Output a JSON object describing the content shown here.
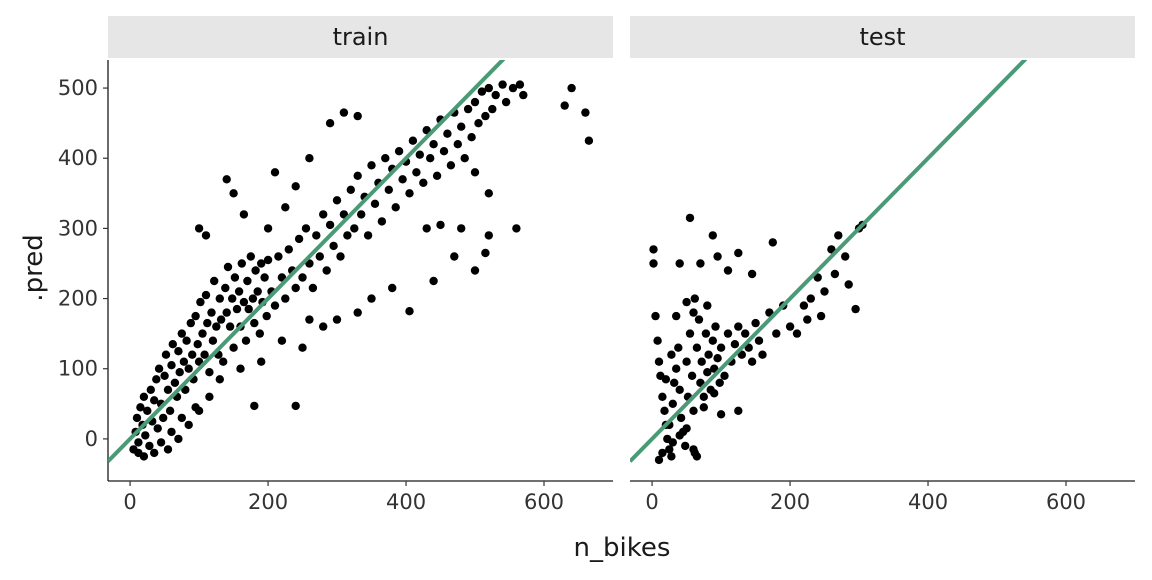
{
  "chart_data": {
    "type": "scatter",
    "xlabel": "n_bikes",
    "ylabel": ".pred",
    "xlim": [
      -32,
      700
    ],
    "ylim": [
      -60,
      540
    ],
    "x_ticks": [
      0,
      200,
      400,
      600
    ],
    "x_tick_labels": [
      "0",
      "200",
      "400",
      "600"
    ],
    "y_ticks": [
      0,
      100,
      200,
      300,
      400,
      500
    ],
    "y_tick_labels": [
      "0",
      "100",
      "200",
      "300",
      "400",
      "500"
    ],
    "grid": false,
    "colors": {
      "points": "#000000",
      "reference_line": "#4a9a77",
      "strip": "#e6e6e6"
    },
    "reference_line": {
      "slope": 1,
      "intercept": 0
    },
    "panels": [
      {
        "label": "train",
        "points": [
          [
            5,
            -15
          ],
          [
            8,
            10
          ],
          [
            10,
            30
          ],
          [
            12,
            -5
          ],
          [
            15,
            45
          ],
          [
            18,
            20
          ],
          [
            20,
            60
          ],
          [
            22,
            5
          ],
          [
            25,
            40
          ],
          [
            28,
            -10
          ],
          [
            30,
            70
          ],
          [
            32,
            25
          ],
          [
            35,
            55
          ],
          [
            38,
            85
          ],
          [
            40,
            15
          ],
          [
            42,
            100
          ],
          [
            45,
            50
          ],
          [
            48,
            30
          ],
          [
            50,
            90
          ],
          [
            52,
            120
          ],
          [
            55,
            70
          ],
          [
            58,
            40
          ],
          [
            60,
            105
          ],
          [
            62,
            135
          ],
          [
            65,
            80
          ],
          [
            68,
            60
          ],
          [
            70,
            125
          ],
          [
            72,
            95
          ],
          [
            75,
            150
          ],
          [
            78,
            110
          ],
          [
            80,
            70
          ],
          [
            82,
            140
          ],
          [
            85,
            100
          ],
          [
            88,
            165
          ],
          [
            90,
            120
          ],
          [
            92,
            85
          ],
          [
            95,
            175
          ],
          [
            98,
            135
          ],
          [
            100,
            110
          ],
          [
            102,
            195
          ],
          [
            105,
            150
          ],
          [
            108,
            120
          ],
          [
            110,
            205
          ],
          [
            112,
            165
          ],
          [
            115,
            95
          ],
          [
            118,
            180
          ],
          [
            120,
            140
          ],
          [
            122,
            225
          ],
          [
            125,
            160
          ],
          [
            128,
            120
          ],
          [
            130,
            200
          ],
          [
            132,
            170
          ],
          [
            135,
            110
          ],
          [
            138,
            215
          ],
          [
            140,
            180
          ],
          [
            142,
            245
          ],
          [
            145,
            160
          ],
          [
            148,
            200
          ],
          [
            150,
            130
          ],
          [
            152,
            230
          ],
          [
            155,
            185
          ],
          [
            158,
            210
          ],
          [
            160,
            160
          ],
          [
            162,
            250
          ],
          [
            165,
            195
          ],
          [
            168,
            140
          ],
          [
            170,
            225
          ],
          [
            172,
            185
          ],
          [
            175,
            260
          ],
          [
            178,
            200
          ],
          [
            180,
            165
          ],
          [
            182,
            240
          ],
          [
            185,
            210
          ],
          [
            188,
            150
          ],
          [
            190,
            250
          ],
          [
            192,
            195
          ],
          [
            195,
            230
          ],
          [
            198,
            175
          ],
          [
            200,
            255
          ],
          [
            205,
            210
          ],
          [
            210,
            190
          ],
          [
            215,
            260
          ],
          [
            220,
            230
          ],
          [
            225,
            200
          ],
          [
            230,
            270
          ],
          [
            235,
            240
          ],
          [
            240,
            215
          ],
          [
            245,
            285
          ],
          [
            250,
            230
          ],
          [
            255,
            300
          ],
          [
            260,
            250
          ],
          [
            265,
            215
          ],
          [
            270,
            290
          ],
          [
            275,
            260
          ],
          [
            280,
            320
          ],
          [
            285,
            240
          ],
          [
            290,
            305
          ],
          [
            295,
            275
          ],
          [
            300,
            340
          ],
          [
            305,
            260
          ],
          [
            310,
            320
          ],
          [
            315,
            290
          ],
          [
            320,
            355
          ],
          [
            325,
            300
          ],
          [
            330,
            375
          ],
          [
            335,
            320
          ],
          [
            340,
            345
          ],
          [
            345,
            290
          ],
          [
            350,
            390
          ],
          [
            355,
            335
          ],
          [
            360,
            365
          ],
          [
            365,
            310
          ],
          [
            370,
            400
          ],
          [
            375,
            355
          ],
          [
            380,
            385
          ],
          [
            385,
            330
          ],
          [
            390,
            410
          ],
          [
            395,
            370
          ],
          [
            400,
            395
          ],
          [
            405,
            350
          ],
          [
            410,
            425
          ],
          [
            415,
            380
          ],
          [
            420,
            405
          ],
          [
            425,
            365
          ],
          [
            430,
            440
          ],
          [
            435,
            400
          ],
          [
            440,
            420
          ],
          [
            445,
            375
          ],
          [
            450,
            455
          ],
          [
            455,
            410
          ],
          [
            460,
            435
          ],
          [
            465,
            390
          ],
          [
            470,
            465
          ],
          [
            475,
            420
          ],
          [
            480,
            445
          ],
          [
            485,
            400
          ],
          [
            490,
            470
          ],
          [
            495,
            430
          ],
          [
            500,
            480
          ],
          [
            505,
            450
          ],
          [
            510,
            495
          ],
          [
            515,
            460
          ],
          [
            520,
            500
          ],
          [
            525,
            470
          ],
          [
            530,
            490
          ],
          [
            540,
            505
          ],
          [
            545,
            480
          ],
          [
            555,
            500
          ],
          [
            565,
            505
          ],
          [
            570,
            490
          ],
          [
            630,
            475
          ],
          [
            640,
            500
          ],
          [
            660,
            465
          ],
          [
            665,
            425
          ],
          [
            140,
            370
          ],
          [
            150,
            350
          ],
          [
            165,
            320
          ],
          [
            200,
            300
          ],
          [
            225,
            330
          ],
          [
            260,
            400
          ],
          [
            310,
            465
          ],
          [
            330,
            460
          ],
          [
            290,
            450
          ],
          [
            100,
            300
          ],
          [
            110,
            290
          ],
          [
            210,
            380
          ],
          [
            240,
            360
          ],
          [
            180,
            47
          ],
          [
            240,
            47
          ],
          [
            405,
            182
          ],
          [
            440,
            225
          ],
          [
            470,
            260
          ],
          [
            500,
            240
          ],
          [
            515,
            265
          ],
          [
            520,
            290
          ],
          [
            560,
            300
          ],
          [
            430,
            300
          ],
          [
            450,
            305
          ],
          [
            480,
            300
          ],
          [
            520,
            350
          ],
          [
            500,
            380
          ],
          [
            330,
            180
          ],
          [
            350,
            200
          ],
          [
            380,
            215
          ],
          [
            300,
            170
          ],
          [
            280,
            160
          ],
          [
            260,
            170
          ],
          [
            250,
            130
          ],
          [
            220,
            140
          ],
          [
            190,
            110
          ],
          [
            160,
            100
          ],
          [
            130,
            85
          ],
          [
            115,
            60
          ],
          [
            95,
            45
          ],
          [
            75,
            30
          ],
          [
            60,
            10
          ],
          [
            45,
            -5
          ],
          [
            35,
            -20
          ],
          [
            20,
            -25
          ],
          [
            12,
            -20
          ],
          [
            55,
            -15
          ],
          [
            70,
            0
          ],
          [
            85,
            20
          ],
          [
            100,
            40
          ]
        ]
      },
      {
        "label": "test",
        "points": [
          [
            2,
            270
          ],
          [
            2,
            250
          ],
          [
            5,
            175
          ],
          [
            8,
            140
          ],
          [
            10,
            110
          ],
          [
            12,
            90
          ],
          [
            15,
            60
          ],
          [
            18,
            40
          ],
          [
            20,
            20
          ],
          [
            22,
            0
          ],
          [
            25,
            -15
          ],
          [
            28,
            -25
          ],
          [
            30,
            50
          ],
          [
            32,
            80
          ],
          [
            35,
            100
          ],
          [
            38,
            130
          ],
          [
            40,
            70
          ],
          [
            42,
            30
          ],
          [
            45,
            10
          ],
          [
            48,
            -10
          ],
          [
            50,
            110
          ],
          [
            52,
            60
          ],
          [
            55,
            150
          ],
          [
            58,
            90
          ],
          [
            60,
            40
          ],
          [
            62,
            -20
          ],
          [
            65,
            130
          ],
          [
            68,
            170
          ],
          [
            70,
            80
          ],
          [
            72,
            110
          ],
          [
            75,
            60
          ],
          [
            78,
            150
          ],
          [
            80,
            95
          ],
          [
            82,
            120
          ],
          [
            85,
            70
          ],
          [
            88,
            140
          ],
          [
            90,
            100
          ],
          [
            92,
            160
          ],
          [
            95,
            115
          ],
          [
            98,
            80
          ],
          [
            100,
            130
          ],
          [
            105,
            90
          ],
          [
            110,
            150
          ],
          [
            115,
            110
          ],
          [
            120,
            135
          ],
          [
            125,
            160
          ],
          [
            130,
            120
          ],
          [
            135,
            150
          ],
          [
            140,
            130
          ],
          [
            145,
            110
          ],
          [
            150,
            165
          ],
          [
            155,
            140
          ],
          [
            160,
            120
          ],
          [
            170,
            180
          ],
          [
            180,
            150
          ],
          [
            190,
            190
          ],
          [
            200,
            160
          ],
          [
            210,
            150
          ],
          [
            220,
            190
          ],
          [
            225,
            170
          ],
          [
            230,
            200
          ],
          [
            240,
            230
          ],
          [
            245,
            175
          ],
          [
            250,
            210
          ],
          [
            260,
            270
          ],
          [
            265,
            235
          ],
          [
            270,
            290
          ],
          [
            280,
            260
          ],
          [
            285,
            220
          ],
          [
            295,
            185
          ],
          [
            300,
            300
          ],
          [
            305,
            305
          ],
          [
            55,
            315
          ],
          [
            88,
            290
          ],
          [
            95,
            260
          ],
          [
            110,
            240
          ],
          [
            125,
            265
          ],
          [
            145,
            235
          ],
          [
            175,
            280
          ],
          [
            70,
            250
          ],
          [
            40,
            250
          ],
          [
            62,
            200
          ],
          [
            80,
            190
          ],
          [
            60,
            180
          ],
          [
            50,
            195
          ],
          [
            35,
            175
          ],
          [
            100,
            35
          ],
          [
            125,
            40
          ],
          [
            60,
            -15
          ],
          [
            65,
            -25
          ],
          [
            40,
            5
          ],
          [
            25,
            20
          ],
          [
            15,
            -20
          ],
          [
            10,
            -30
          ],
          [
            30,
            -5
          ],
          [
            50,
            15
          ],
          [
            90,
            65
          ],
          [
            75,
            45
          ],
          [
            20,
            85
          ],
          [
            28,
            120
          ]
        ]
      }
    ]
  }
}
